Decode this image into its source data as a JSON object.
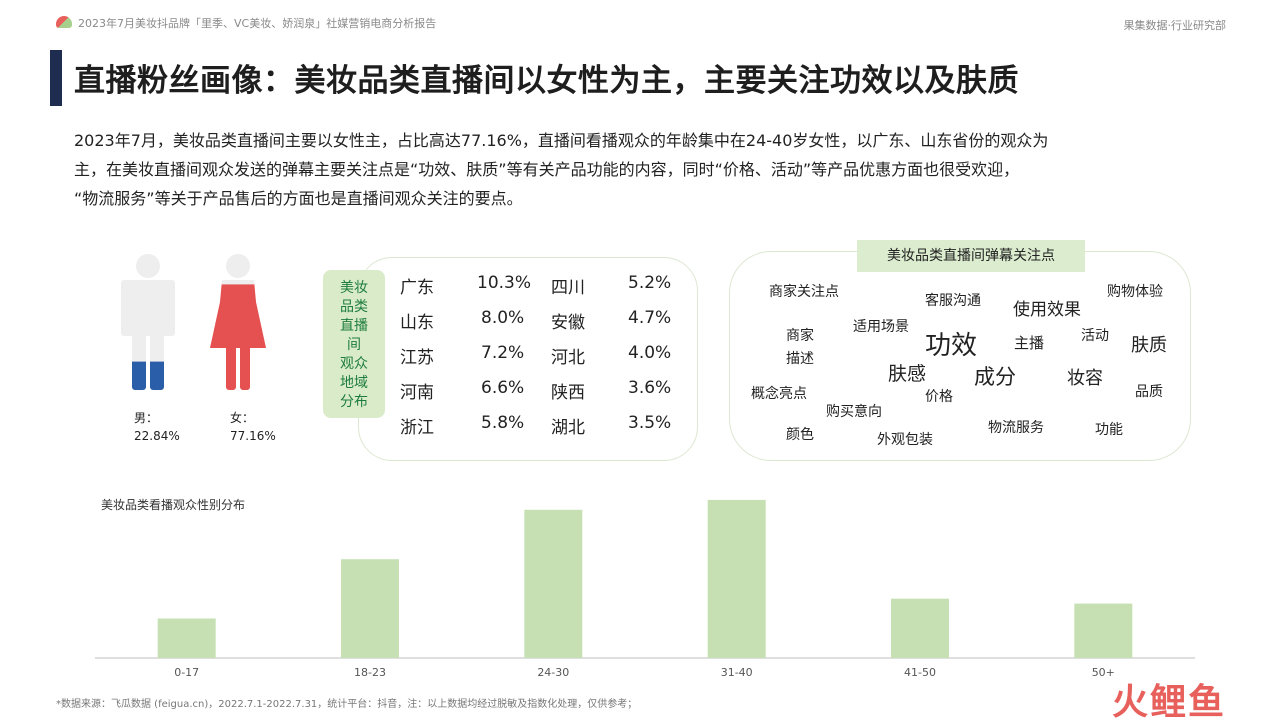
{
  "header": {
    "report_title": "2023年7月美妆抖品牌「里季、VC美妆、娇润泉」社媒营销电商分析报告",
    "brand": "果集数据·行业研究部"
  },
  "page": {
    "title": "直播粉丝画像：美妆品类直播间以女性为主，主要关注功效以及肤质",
    "summary_lines": [
      "2023年7月，美妆品类直播间主要以女性主，占比高达77.16%，直播间看播观众的年龄集中在24-40岁女性，以广东、山东省份的观众为",
      "主，在美妆直播间观众发送的弹幕主要关注点是“功效、肤质”等有关产品功能的内容，同时“价格、活动”等产品优惠方面也很受欢迎，",
      "“物流服务”等关于产品售后的方面也是直播间观众关注的要点。"
    ]
  },
  "gender": {
    "male": {
      "label": "男：",
      "value": "22.84%",
      "share": 22.84,
      "color": "#2b5ea8"
    },
    "female": {
      "label": "女：",
      "value": "77.16%",
      "share": 77.16,
      "color": "#e55050"
    },
    "base_color": "#eeeeee"
  },
  "regions": {
    "tag_chars": [
      "美妆",
      "品类",
      "直播",
      "间",
      "观众",
      "地域",
      "分布"
    ],
    "rows": [
      {
        "p1": "广东",
        "v1": "10.3%",
        "p2": "四川",
        "v2": "5.2%"
      },
      {
        "p1": "山东",
        "v1": "8.0%",
        "p2": "安徽",
        "v2": "4.7%"
      },
      {
        "p1": "江苏",
        "v1": "7.2%",
        "p2": "河北",
        "v2": "4.0%"
      },
      {
        "p1": "河南",
        "v1": "6.6%",
        "p2": "陕西",
        "v2": "3.6%"
      },
      {
        "p1": "浙江",
        "v1": "5.8%",
        "p2": "湖北",
        "v2": "3.5%"
      }
    ]
  },
  "wordcloud": {
    "title": "美妆品类直播间弹幕关注点",
    "words": [
      "商家关注点",
      "客服沟通",
      "使用效果",
      "购物体验",
      "商家",
      "描述",
      "适用场景",
      "功效",
      "主播",
      "活动",
      "肤质",
      "肤感",
      "成分",
      "妆容",
      "概念亮点",
      "价格",
      "品质",
      "购买意向",
      "颜色",
      "外观包装",
      "物流服务",
      "功能"
    ]
  },
  "chart_data": {
    "type": "bar",
    "title": "美妆品类看播观众性别分布",
    "categories": [
      "0-17",
      "18-23",
      "24-30",
      "31-40",
      "41-50",
      "50+"
    ],
    "values": [
      4,
      10,
      15,
      16,
      6,
      5.5
    ],
    "ylim": [
      0,
      17
    ],
    "bar_color": "#c6e0b4",
    "axis_color": "#bfbfbf",
    "grid": false
  },
  "footer": {
    "note": "*数据来源：飞瓜数据 (feigua.cn)，2022.7.1-2022.7.31，统计平台：抖音，注：以上数据均经过脱敏及指数化处理，仅供参考；",
    "watermark": "火鲤鱼"
  }
}
